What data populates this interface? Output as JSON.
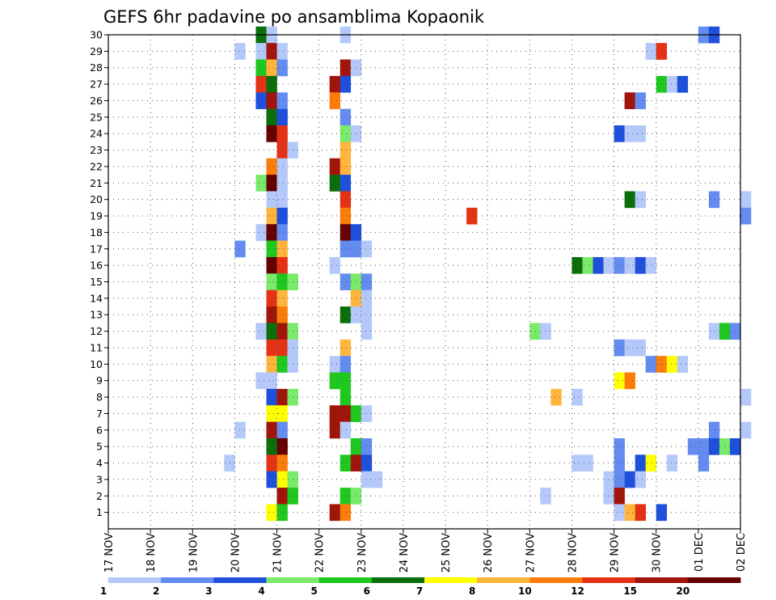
{
  "chart_data": {
    "type": "heatmap",
    "title": "GEFS 6hr padavine po ansamblima Kopaonik",
    "x_tick_labels": [
      "17 NOV",
      "18 NOV",
      "19 NOV",
      "20 NOV",
      "21 NOV",
      "22 NOV",
      "23 NOV",
      "24 NOV",
      "25 NOV",
      "26 NOV",
      "27 NOV",
      "28 NOV",
      "29 NOV",
      "30 NOV",
      "01 DEC",
      "02 DEC"
    ],
    "y_tick_labels": [
      "1",
      "2",
      "3",
      "4",
      "5",
      "6",
      "7",
      "8",
      "9",
      "10",
      "11",
      "12",
      "13",
      "14",
      "15",
      "16",
      "17",
      "18",
      "19",
      "20",
      "21",
      "22",
      "23",
      "24",
      "25",
      "26",
      "27",
      "28",
      "29",
      "30"
    ],
    "x_range_days": [
      0,
      15
    ],
    "y_range": [
      0,
      30
    ],
    "time_step_hours": 6,
    "grid": true,
    "legend_placement": "bottom",
    "legend": {
      "colors": [
        "#b4c8fa",
        "#648cf0",
        "#1e50dc",
        "#7aea6a",
        "#1ec81e",
        "#0a6e0a",
        "#ffff00",
        "#ffb43c",
        "#fa7d0a",
        "#e63214",
        "#a0140a",
        "#640000"
      ],
      "labels": [
        "1",
        "2",
        "3",
        "4",
        "5",
        "6",
        "7",
        "8",
        "10",
        "12",
        "15",
        "20"
      ]
    },
    "cells": [
      [
        30,
        3.5,
        6
      ],
      [
        30,
        3.75,
        1
      ],
      [
        30,
        5.5,
        1
      ],
      [
        30,
        14.0,
        2
      ],
      [
        30,
        14.25,
        3
      ],
      [
        29,
        3,
        1
      ],
      [
        29,
        3.5,
        1
      ],
      [
        29,
        3.75,
        11
      ],
      [
        29,
        4,
        1
      ],
      [
        29,
        12.75,
        1
      ],
      [
        29,
        13.0,
        10
      ],
      [
        28,
        3.5,
        5
      ],
      [
        28,
        3.75,
        8
      ],
      [
        28,
        4,
        2
      ],
      [
        28,
        5.5,
        11
      ],
      [
        28,
        5.75,
        1
      ],
      [
        27,
        3.5,
        10
      ],
      [
        27,
        3.75,
        6
      ],
      [
        27,
        5.25,
        11
      ],
      [
        27,
        5.5,
        3
      ],
      [
        27,
        13.0,
        5
      ],
      [
        27,
        13.25,
        1
      ],
      [
        27,
        13.5,
        3
      ],
      [
        26,
        3.5,
        3
      ],
      [
        26,
        3.75,
        11
      ],
      [
        26,
        4,
        2
      ],
      [
        26,
        5.25,
        9
      ],
      [
        26,
        12.25,
        11
      ],
      [
        26,
        12.5,
        2
      ],
      [
        25,
        3.75,
        6
      ],
      [
        25,
        4,
        3
      ],
      [
        25,
        5.5,
        2
      ],
      [
        24,
        3.75,
        12
      ],
      [
        24,
        4,
        10
      ],
      [
        24,
        5.5,
        4
      ],
      [
        24,
        5.75,
        1
      ],
      [
        24,
        12.0,
        3
      ],
      [
        24,
        12.25,
        1
      ],
      [
        24,
        12.5,
        1
      ],
      [
        23,
        4,
        10
      ],
      [
        23,
        4.25,
        1
      ],
      [
        23,
        5.5,
        8
      ],
      [
        22,
        3.75,
        9
      ],
      [
        22,
        4,
        1
      ],
      [
        22,
        5.25,
        11
      ],
      [
        22,
        5.5,
        8
      ],
      [
        21,
        3.5,
        4
      ],
      [
        21,
        3.75,
        12
      ],
      [
        21,
        4,
        1
      ],
      [
        21,
        5.25,
        6
      ],
      [
        21,
        5.5,
        3
      ],
      [
        20,
        3.75,
        1
      ],
      [
        20,
        4,
        1
      ],
      [
        20,
        5.5,
        10
      ],
      [
        20,
        12.25,
        6
      ],
      [
        20,
        12.5,
        1
      ],
      [
        20,
        14.25,
        2
      ],
      [
        20,
        15.0,
        1
      ],
      [
        19,
        3.75,
        8
      ],
      [
        19,
        4,
        3
      ],
      [
        19,
        5.5,
        9
      ],
      [
        19,
        8.5,
        10
      ],
      [
        19,
        15.0,
        2
      ],
      [
        18,
        3.5,
        1
      ],
      [
        18,
        3.75,
        12
      ],
      [
        18,
        4,
        2
      ],
      [
        18,
        5.5,
        12
      ],
      [
        18,
        5.75,
        3
      ],
      [
        17,
        3,
        2
      ],
      [
        17,
        3.75,
        5
      ],
      [
        17,
        4,
        8
      ],
      [
        17,
        5.5,
        2
      ],
      [
        17,
        5.75,
        2
      ],
      [
        17,
        6,
        1
      ],
      [
        16,
        3.75,
        12
      ],
      [
        16,
        4,
        10
      ],
      [
        16,
        5.25,
        1
      ],
      [
        16,
        11.0,
        6
      ],
      [
        16,
        11.25,
        4
      ],
      [
        16,
        11.5,
        3
      ],
      [
        16,
        11.75,
        1
      ],
      [
        16,
        12.0,
        2
      ],
      [
        16,
        12.25,
        1
      ],
      [
        16,
        12.5,
        3
      ],
      [
        16,
        12.75,
        1
      ],
      [
        15,
        3.75,
        4
      ],
      [
        15,
        4,
        5
      ],
      [
        15,
        4.25,
        4
      ],
      [
        15,
        5.5,
        2
      ],
      [
        15,
        5.75,
        4
      ],
      [
        15,
        6,
        2
      ],
      [
        14,
        3.75,
        10
      ],
      [
        14,
        4,
        8
      ],
      [
        14,
        5.75,
        8
      ],
      [
        14,
        6,
        1
      ],
      [
        13,
        3.75,
        11
      ],
      [
        13,
        4,
        9
      ],
      [
        13,
        5.5,
        6
      ],
      [
        13,
        5.75,
        1
      ],
      [
        13,
        6,
        1
      ],
      [
        12,
        3.5,
        1
      ],
      [
        12,
        3.75,
        6
      ],
      [
        12,
        4,
        11
      ],
      [
        12,
        4.25,
        4
      ],
      [
        12,
        6,
        1
      ],
      [
        12,
        10.0,
        4
      ],
      [
        12,
        10.25,
        1
      ],
      [
        12,
        14.25,
        1
      ],
      [
        12,
        14.5,
        5
      ],
      [
        12,
        14.75,
        2
      ],
      [
        11,
        3.75,
        10
      ],
      [
        11,
        4,
        10
      ],
      [
        11,
        4.25,
        1
      ],
      [
        11,
        5.5,
        8
      ],
      [
        11,
        12.0,
        2
      ],
      [
        11,
        12.25,
        1
      ],
      [
        11,
        12.5,
        1
      ],
      [
        10,
        3.75,
        8
      ],
      [
        10,
        4,
        5
      ],
      [
        10,
        4.25,
        1
      ],
      [
        10,
        5.25,
        1
      ],
      [
        10,
        5.5,
        2
      ],
      [
        10,
        12.75,
        2
      ],
      [
        10,
        13.0,
        9
      ],
      [
        10,
        13.25,
        7
      ],
      [
        10,
        13.5,
        1
      ],
      [
        9,
        3.5,
        1
      ],
      [
        9,
        3.75,
        1
      ],
      [
        9,
        5.25,
        5
      ],
      [
        9,
        5.5,
        5
      ],
      [
        9,
        12.0,
        7
      ],
      [
        9,
        12.25,
        9
      ],
      [
        8,
        3.75,
        3
      ],
      [
        8,
        4,
        11
      ],
      [
        8,
        4.25,
        4
      ],
      [
        8,
        5.5,
        5
      ],
      [
        8,
        10.5,
        8
      ],
      [
        8,
        11.0,
        1
      ],
      [
        8,
        15.0,
        1
      ],
      [
        7,
        3.75,
        7
      ],
      [
        7,
        4,
        7
      ],
      [
        7,
        5.25,
        11
      ],
      [
        7,
        5.5,
        11
      ],
      [
        7,
        5.75,
        5
      ],
      [
        7,
        6,
        1
      ],
      [
        6,
        3,
        1
      ],
      [
        6,
        3.75,
        11
      ],
      [
        6,
        4,
        2
      ],
      [
        6,
        5.25,
        11
      ],
      [
        6,
        5.5,
        1
      ],
      [
        6,
        14.25,
        2
      ],
      [
        6,
        15.0,
        1
      ],
      [
        5,
        3.75,
        6
      ],
      [
        5,
        4,
        12
      ],
      [
        5,
        5.75,
        5
      ],
      [
        5,
        6,
        2
      ],
      [
        5,
        12.0,
        2
      ],
      [
        5,
        13.75,
        2
      ],
      [
        5,
        14.0,
        2
      ],
      [
        5,
        14.25,
        3
      ],
      [
        5,
        14.5,
        4
      ],
      [
        5,
        14.75,
        3
      ],
      [
        4,
        2.75,
        1
      ],
      [
        4,
        3.75,
        10
      ],
      [
        4,
        4,
        9
      ],
      [
        4,
        5.5,
        5
      ],
      [
        4,
        5.75,
        11
      ],
      [
        4,
        6,
        3
      ],
      [
        4,
        11.0,
        1
      ],
      [
        4,
        11.25,
        1
      ],
      [
        4,
        12.0,
        2
      ],
      [
        4,
        12.5,
        3
      ],
      [
        4,
        12.75,
        7
      ],
      [
        4,
        13.25,
        1
      ],
      [
        4,
        14.0,
        2
      ],
      [
        3,
        3.75,
        3
      ],
      [
        3,
        4,
        7
      ],
      [
        3,
        4.25,
        4
      ],
      [
        3,
        6,
        1
      ],
      [
        3,
        6.25,
        1
      ],
      [
        3,
        11.75,
        1
      ],
      [
        3,
        12.0,
        2
      ],
      [
        3,
        12.25,
        3
      ],
      [
        3,
        12.5,
        1
      ],
      [
        2,
        4,
        11
      ],
      [
        2,
        4.25,
        5
      ],
      [
        2,
        5.5,
        5
      ],
      [
        2,
        5.75,
        4
      ],
      [
        2,
        10.25,
        1
      ],
      [
        2,
        11.75,
        1
      ],
      [
        2,
        12.0,
        11
      ],
      [
        1,
        3.75,
        7
      ],
      [
        1,
        4,
        5
      ],
      [
        1,
        5.25,
        11
      ],
      [
        1,
        5.5,
        9
      ],
      [
        1,
        12.0,
        1
      ],
      [
        1,
        12.25,
        8
      ],
      [
        1,
        12.5,
        10
      ],
      [
        1,
        13.0,
        3
      ]
    ]
  }
}
